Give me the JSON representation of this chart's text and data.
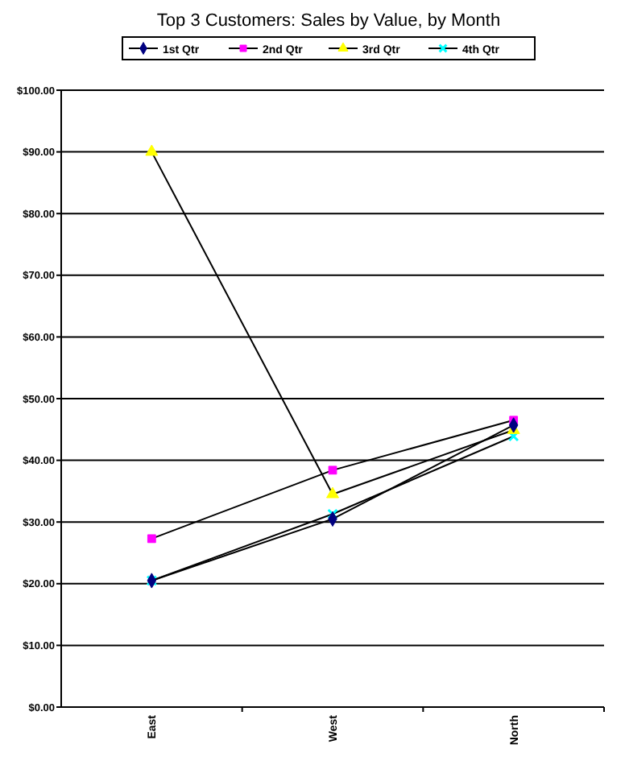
{
  "chart_data": {
    "type": "line",
    "title": "Top 3 Customers: Sales by Value, by Month",
    "categories": [
      "East",
      "West",
      "North"
    ],
    "series": [
      {
        "name": "1st Qtr",
        "color": "#000080",
        "marker": "diamond",
        "values": [
          20.5,
          30.5,
          45.7
        ]
      },
      {
        "name": "2nd Qtr",
        "color": "#ff00ff",
        "marker": "square",
        "values": [
          27.3,
          38.4,
          46.5
        ]
      },
      {
        "name": "3rd Qtr",
        "color": "#ffff00",
        "marker": "triangle",
        "values": [
          90,
          34.5,
          44.9
        ]
      },
      {
        "name": "4th Qtr",
        "color": "#00ffff",
        "marker": "cross",
        "values": [
          20.5,
          31.3,
          43.9
        ]
      }
    ],
    "ylim": [
      0,
      100
    ],
    "yticks": [
      {
        "value": 0,
        "label": "$0.00"
      },
      {
        "value": 10,
        "label": "$10.00"
      },
      {
        "value": 20,
        "label": "$20.00"
      },
      {
        "value": 30,
        "label": "$30.00"
      },
      {
        "value": 40,
        "label": "$40.00"
      },
      {
        "value": 50,
        "label": "$50.00"
      },
      {
        "value": 60,
        "label": "$60.00"
      },
      {
        "value": 70,
        "label": "$70.00"
      },
      {
        "value": 80,
        "label": "$80.00"
      },
      {
        "value": 90,
        "label": "$90.00"
      },
      {
        "value": 100,
        "label": "$100.00"
      }
    ],
    "grid": "y",
    "legend": "top"
  }
}
